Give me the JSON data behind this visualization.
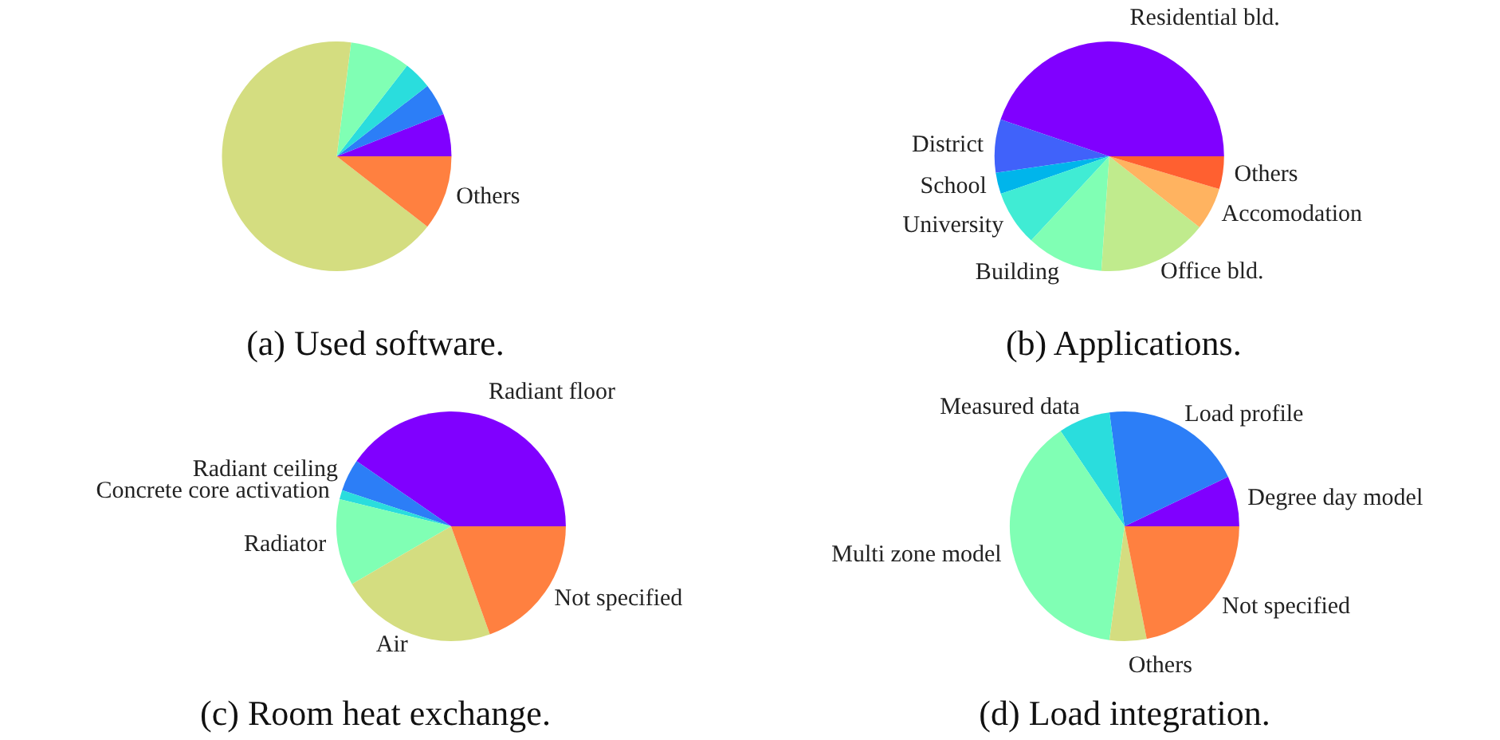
{
  "chart_data": [
    {
      "type": "pie",
      "title": "(a) Used software.",
      "categories": [
        null,
        null,
        null,
        null,
        null,
        "Others"
      ],
      "values": [
        6,
        4.5,
        4,
        8.5,
        66.5,
        10.5
      ],
      "colors": [
        "#8000ff",
        "#2c7ef7",
        "#2adddd",
        "#80ffb4",
        "#d4dd80",
        "#ff8040"
      ]
    },
    {
      "type": "pie",
      "title": "(b) Applications.",
      "categories": [
        "Residential bld.",
        "District",
        "School",
        "University",
        "Building",
        "Office bld.",
        "Accomodation",
        "Others"
      ],
      "values": [
        44.8,
        7.5,
        3,
        7.8,
        10.8,
        15.5,
        6,
        4.6
      ],
      "colors": [
        "#8000ff",
        "#4062fa",
        "#00b5eb",
        "#40ecd4",
        "#80ffb4",
        "#c0eb8d",
        "#ffb360",
        "#ff6030"
      ]
    },
    {
      "type": "pie",
      "title": "(c) Room heat exchange.",
      "categories": [
        "Radiant floor",
        "Radiant ceiling",
        "Concrete core activation",
        "Radiator",
        "Air",
        "Not specified"
      ],
      "values": [
        40.4,
        4.5,
        1.3,
        12.2,
        22.1,
        19.5
      ],
      "colors": [
        "#8000ff",
        "#2c7ef7",
        "#2adddd",
        "#80ffb4",
        "#d4dd80",
        "#ff8040"
      ]
    },
    {
      "type": "pie",
      "title": "(d) Load integration.",
      "categories": [
        "Degree day model",
        "Load profile",
        "Measured data",
        "Multi zone model",
        "Others",
        "Not specified"
      ],
      "values": [
        7.1,
        20,
        7.3,
        38.5,
        5.2,
        21.9
      ],
      "colors": [
        "#8000ff",
        "#2c7ef7",
        "#2adddd",
        "#80ffb4",
        "#d4dd80",
        "#ff8040"
      ]
    }
  ]
}
